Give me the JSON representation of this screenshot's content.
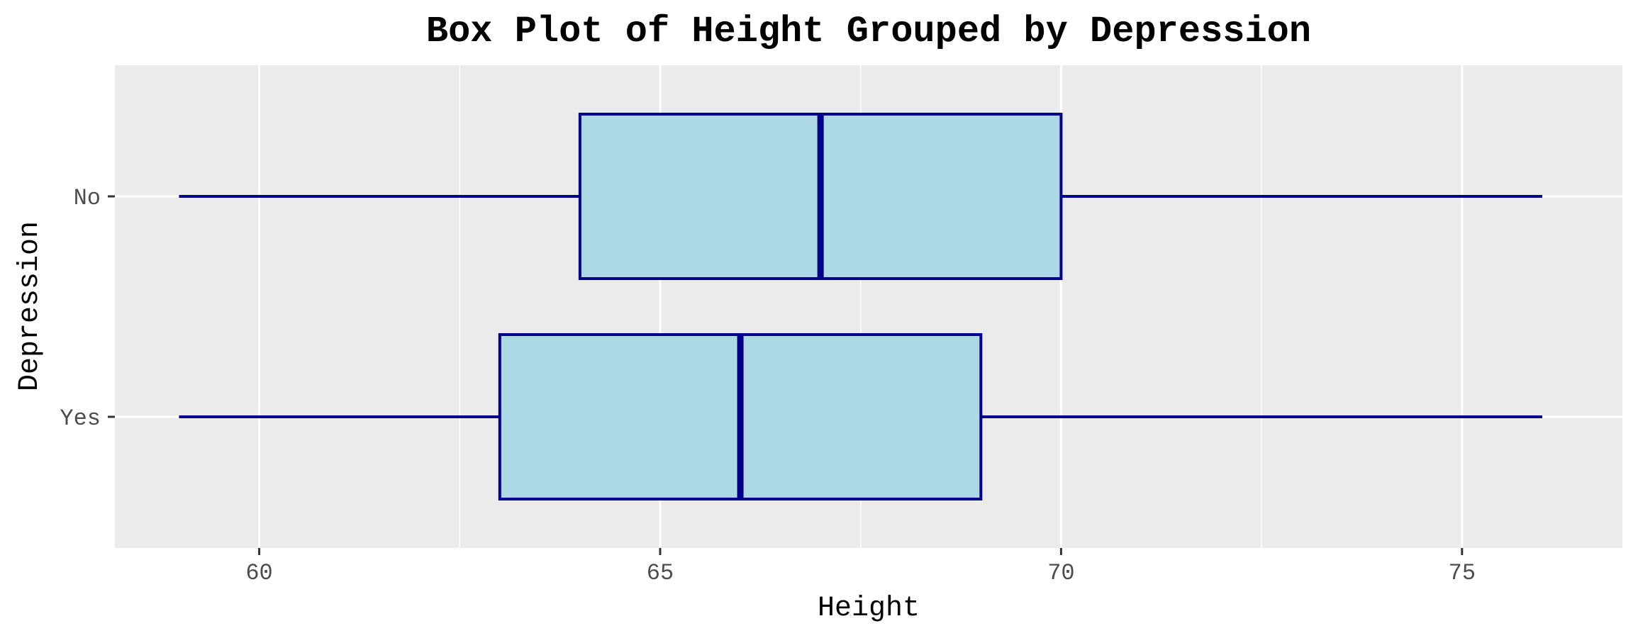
{
  "chart_data": {
    "type": "boxplot",
    "title": "Box Plot of Height Grouped by Depression",
    "xlabel": "Height",
    "ylabel": "Depression",
    "orientation": "horizontal",
    "xlim": [
      58.2,
      77.0
    ],
    "x_ticks": [
      60,
      65,
      70,
      75
    ],
    "grid": true,
    "legend": "none",
    "categories": [
      "No",
      "Yes"
    ],
    "boxes": [
      {
        "category": "No",
        "min": 59,
        "q1": 64,
        "median": 67,
        "q3": 70,
        "max": 76
      },
      {
        "category": "Yes",
        "min": 59,
        "q1": 63,
        "median": 66,
        "q3": 69,
        "max": 76
      }
    ],
    "colors": {
      "panel_background": "#EBEBEB",
      "grid": "#FFFFFF",
      "box_fill": "#ADD8E6",
      "box_stroke": "#00008B",
      "tick": "#333333"
    }
  }
}
